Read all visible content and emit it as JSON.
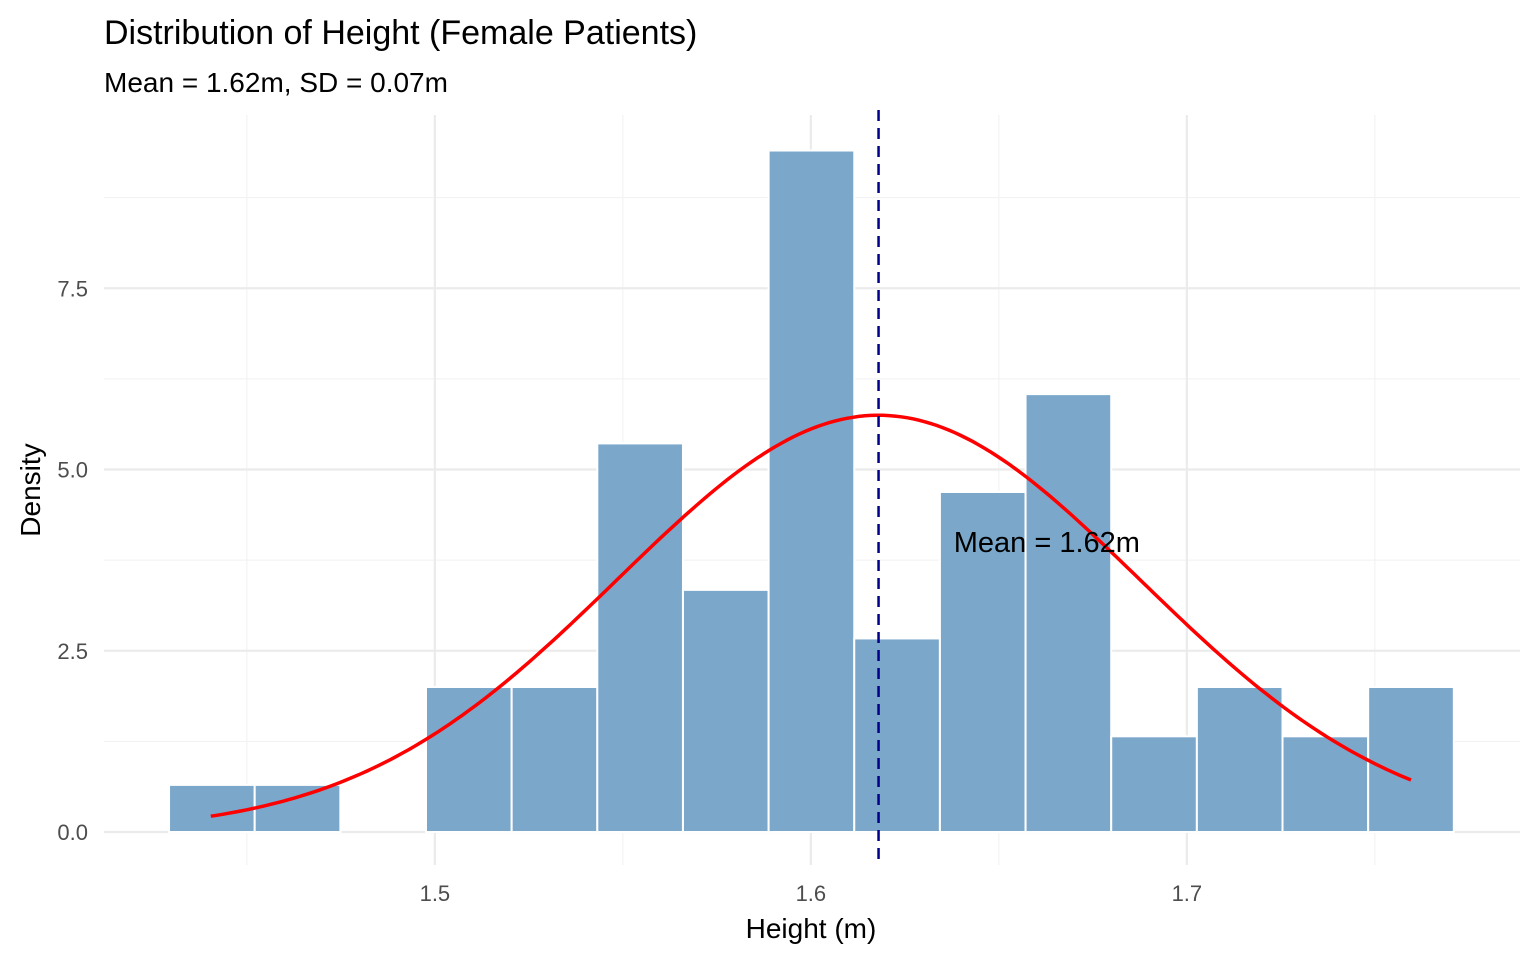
{
  "chart_data": {
    "type": "bar",
    "title": "Distribution of Height (Female Patients)",
    "subtitle": "Mean = 1.62m, SD = 0.07m",
    "xlabel": "Height (m)",
    "ylabel": "Density",
    "xlim": [
      1.412,
      1.7886
    ],
    "ylim": [
      -0.455,
      9.89
    ],
    "x_ticks": [
      1.5,
      1.6,
      1.7
    ],
    "x_tick_labels": [
      "1.5",
      "1.6",
      "1.7"
    ],
    "y_ticks": [
      0,
      2.5,
      5,
      7.5
    ],
    "y_tick_labels": [
      "0.0",
      "2.5",
      "5.0",
      "7.5"
    ],
    "x_minor": [
      1.45,
      1.55,
      1.65,
      1.75
    ],
    "y_minor": [
      1.25,
      3.75,
      6.25,
      8.75
    ],
    "grid": true,
    "histogram": {
      "bin_start": 1.4293,
      "bin_width": 0.02278,
      "densities": [
        0.65,
        0.65,
        0,
        2.0,
        2.0,
        5.36,
        3.34,
        9.4,
        2.67,
        4.69,
        6.04,
        1.32,
        2.0,
        1.32,
        2.0
      ],
      "color": "#7BA7CB"
    },
    "normal_curve": {
      "mean": 1.618,
      "sd": 0.0694,
      "x_range": [
        1.4404,
        1.7596
      ],
      "color": "#FF0000"
    },
    "mean_line": {
      "x": 1.618,
      "color": "#00008B",
      "style": "dashed"
    },
    "annotation": {
      "text": "Mean = 1.62m",
      "x": 1.638,
      "y": 4.0
    }
  }
}
